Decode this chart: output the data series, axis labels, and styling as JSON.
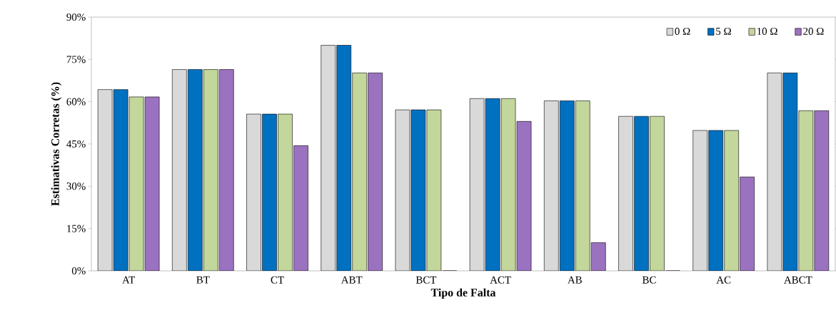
{
  "chart_data": {
    "type": "bar",
    "xlabel": "Tipo de Falta",
    "ylabel": "Estimativas Corretas (%)",
    "categories": [
      "AT",
      "BT",
      "CT",
      "ABT",
      "BCT",
      "ACT",
      "AB",
      "BC",
      "AC",
      "ABCT"
    ],
    "series": [
      {
        "name": "0 Ω",
        "color": "#d9d9d9",
        "values": [
          64.3,
          71.4,
          55.6,
          80,
          57.1,
          61.1,
          60.3,
          54.8,
          49.8,
          70.2
        ]
      },
      {
        "name": "5 Ω",
        "color": "#0070c0",
        "values": [
          64.3,
          71.4,
          55.6,
          80,
          57.1,
          61.1,
          60.3,
          54.8,
          49.8,
          70.2
        ]
      },
      {
        "name": "10 Ω",
        "color": "#c3d69b",
        "values": [
          61.7,
          71.4,
          55.6,
          70.2,
          57.1,
          61.1,
          60.3,
          54.8,
          49.8,
          56.8
        ]
      },
      {
        "name": "20 Ω",
        "color": "#9b72c0",
        "values": [
          61.7,
          71.4,
          44.4,
          70.2,
          0,
          53,
          10,
          0,
          33.3,
          56.8
        ]
      }
    ],
    "ylim": [
      0,
      90
    ],
    "yticks": [
      {
        "value": 0,
        "label": "0%"
      },
      {
        "value": 15,
        "label": "15%"
      },
      {
        "value": 30,
        "label": "30%"
      },
      {
        "value": 45,
        "label": "45%"
      },
      {
        "value": 60,
        "label": "60%"
      },
      {
        "value": 75,
        "label": "75%"
      },
      {
        "value": 90,
        "label": "90%"
      }
    ],
    "legend": "top right"
  }
}
